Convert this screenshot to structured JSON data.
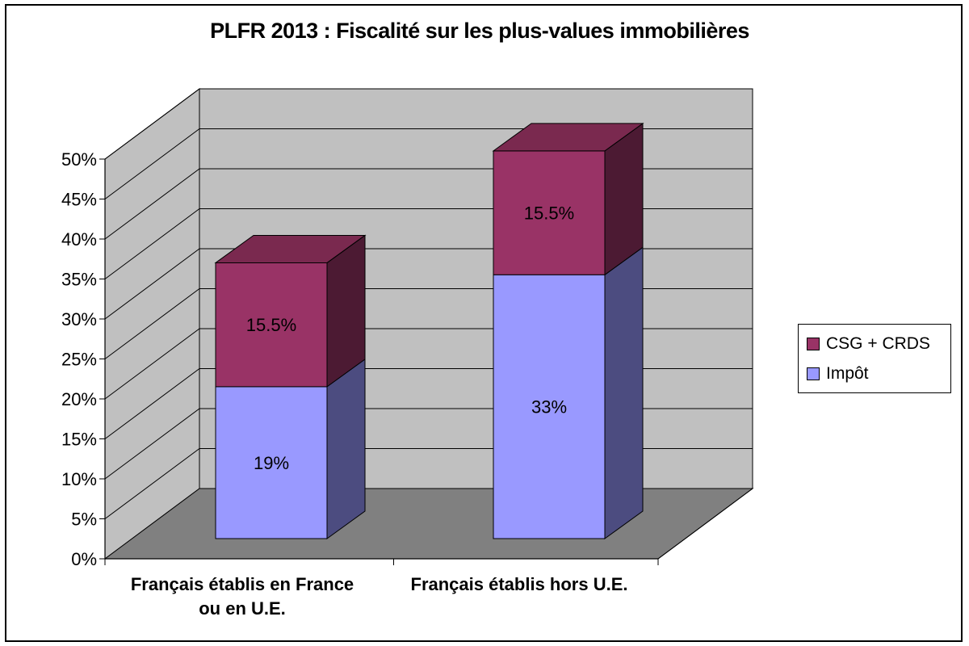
{
  "chart_data": {
    "type": "bar",
    "stacked": true,
    "three_d": true,
    "title": "PLFR 2013 : Fiscalité sur les plus-values immobilières",
    "categories": [
      [
        "Français établis en France",
        "ou en U.E."
      ],
      [
        "Français établis hors U.E."
      ]
    ],
    "series": [
      {
        "name": "Impôt",
        "values": [
          19,
          33
        ],
        "labels": [
          "19%",
          "33%"
        ],
        "color": "#9999FF"
      },
      {
        "name": "CSG + CRDS",
        "values": [
          15.5,
          15.5
        ],
        "labels": [
          "15.5%",
          "15.5%"
        ],
        "color": "#993366"
      }
    ],
    "ylim": [
      0,
      50
    ],
    "y_ticks": [
      "0%",
      "5%",
      "10%",
      "15%",
      "20%",
      "25%",
      "30%",
      "35%",
      "40%",
      "45%",
      "50%"
    ],
    "y_tick_values": [
      0,
      5,
      10,
      15,
      20,
      25,
      30,
      35,
      40,
      45,
      50
    ],
    "grid": true,
    "legend_position": "right",
    "colors": {
      "back_wall": "#C0C0C0",
      "floor": "#808080",
      "impot_side": "#4C4C80",
      "impot_top": "#7A7ACC",
      "csg_side": "#4C1A33",
      "csg_top": "#7A294F"
    }
  },
  "legend": {
    "items": [
      {
        "label": "CSG + CRDS",
        "color": "#993366"
      },
      {
        "label": "Impôt",
        "color": "#9999FF"
      }
    ]
  }
}
